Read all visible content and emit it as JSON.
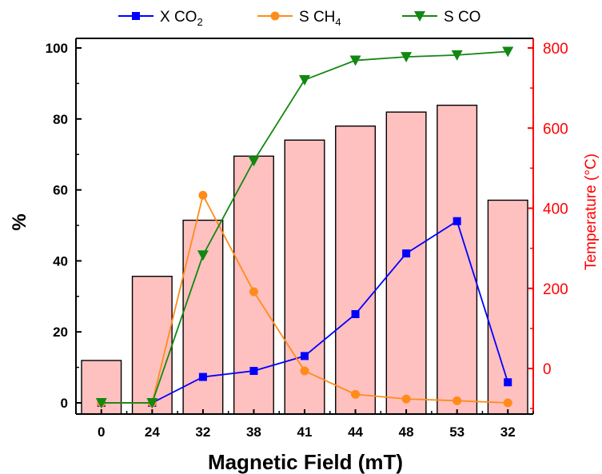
{
  "chart_data": {
    "type": "bar+line",
    "xlabel": "Magnetic Field (mT)",
    "ylabel_left": "%",
    "ylabel_right": "Temperature (°C)",
    "categories": [
      "0",
      "24",
      "32",
      "38",
      "41",
      "44",
      "48",
      "53",
      "32"
    ],
    "ylim_left": [
      0,
      100
    ],
    "ylim_right": [
      -100,
      800
    ],
    "left_ticks": [
      0,
      20,
      40,
      60,
      80,
      100
    ],
    "right_ticks": [
      0,
      200,
      400,
      600,
      800
    ],
    "bars": {
      "axis": "right",
      "color": "#ffc0c0",
      "values": [
        20,
        230,
        370,
        530,
        570,
        605,
        640,
        657,
        420
      ]
    },
    "series": [
      {
        "label_main": "X CO",
        "label_sub": "2",
        "color": "#0000ff",
        "marker": "square",
        "axis": "left",
        "values": [
          0,
          0,
          7.3,
          9,
          13.2,
          25,
          42.1,
          51.2,
          5.8
        ]
      },
      {
        "label_main": "S CH",
        "label_sub": "4",
        "color": "#ff8c1a",
        "marker": "circle",
        "axis": "left",
        "values": [
          0,
          0,
          58.5,
          31.3,
          9.0,
          2.4,
          1.1,
          0.6,
          0.0
        ]
      },
      {
        "label_main": "S CO",
        "label_sub": "",
        "color": "#118811",
        "marker": "triangle-down",
        "axis": "left",
        "values": [
          0,
          0,
          41.6,
          68.2,
          91.0,
          96.5,
          97.5,
          98.0,
          99.0
        ]
      }
    ],
    "legend_position": "top",
    "grid": false
  }
}
